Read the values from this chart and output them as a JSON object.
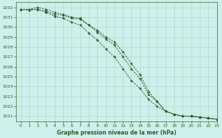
{
  "xlabel": "Graphe pression niveau de la mer (hPa)",
  "background_color": "#cff0ea",
  "grid_color": "#aad8d0",
  "line_color": "#2d5a2d",
  "xlim": [
    -0.5,
    23
  ],
  "ylim": [
    1020.5,
    1032.5
  ],
  "yticks": [
    1021,
    1022,
    1023,
    1024,
    1025,
    1026,
    1027,
    1028,
    1029,
    1030,
    1031,
    1032
  ],
  "xticks": [
    0,
    1,
    2,
    3,
    4,
    5,
    6,
    7,
    8,
    9,
    10,
    11,
    12,
    13,
    14,
    15,
    16,
    17,
    18,
    19,
    20,
    21,
    22,
    23
  ],
  "series": [
    [
      1031.8,
      1031.7,
      1031.8,
      1031.5,
      1031.1,
      1030.9,
      1030.5,
      1030.2,
      1029.4,
      1028.7,
      1027.8,
      1027.0,
      1025.8,
      1024.6,
      1023.8,
      1022.7,
      1022.0,
      1021.5,
      1021.2,
      1021.0,
      1021.0,
      1020.9,
      1020.8,
      1020.7
    ],
    [
      1031.8,
      1031.8,
      1031.8,
      1031.6,
      1031.3,
      1031.2,
      1030.9,
      1030.8,
      1030.2,
      1029.5,
      1028.8,
      1028.2,
      1027.0,
      1025.8,
      1024.8,
      1023.2,
      1022.5,
      1021.5,
      1021.2,
      1021.0,
      1021.0,
      1020.9,
      1020.8,
      1020.7
    ],
    [
      1031.8,
      1031.8,
      1032.0,
      1031.8,
      1031.5,
      1031.3,
      1031.0,
      1030.9,
      1030.2,
      1029.7,
      1029.0,
      1028.5,
      1027.5,
      1026.3,
      1025.2,
      1023.5,
      1022.5,
      1021.5,
      1021.2,
      1021.0,
      1021.0,
      1020.9,
      1020.8,
      1020.7
    ]
  ]
}
